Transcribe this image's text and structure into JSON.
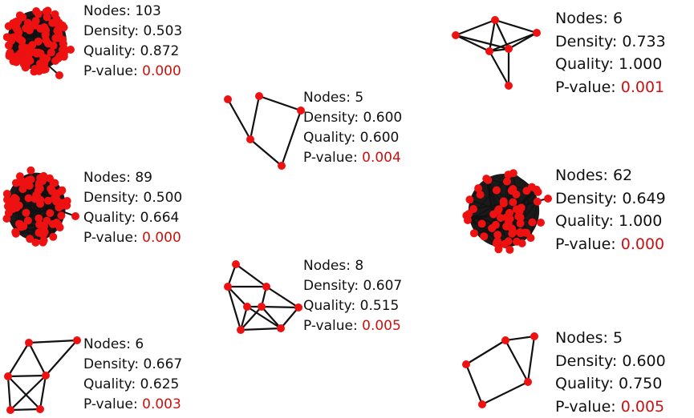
{
  "labels": {
    "nodes": "Nodes:",
    "density": "Density:",
    "quality": "Quality:",
    "pvalue": "P-value:"
  },
  "colors": {
    "node": "#ee1111",
    "edge": "#111111",
    "pvalue": "#cc1111",
    "text": "#111111"
  },
  "clusters": [
    {
      "nodes": "103",
      "density": "0.503",
      "quality": "0.872",
      "pvalue": "0.000"
    },
    {
      "nodes": "5",
      "density": "0.600",
      "quality": "0.600",
      "pvalue": "0.004"
    },
    {
      "nodes": "6",
      "density": "0.733",
      "quality": "1.000",
      "pvalue": "0.001"
    },
    {
      "nodes": "89",
      "density": "0.500",
      "quality": "0.664",
      "pvalue": "0.000"
    },
    {
      "nodes": "8",
      "density": "0.607",
      "quality": "0.515",
      "pvalue": "0.005"
    },
    {
      "nodes": "62",
      "density": "0.649",
      "quality": "1.000",
      "pvalue": "0.000"
    },
    {
      "nodes": "6",
      "density": "0.667",
      "quality": "0.625",
      "pvalue": "0.003"
    },
    {
      "nodes": "5",
      "density": "0.600",
      "quality": "0.750",
      "pvalue": "0.005"
    }
  ]
}
